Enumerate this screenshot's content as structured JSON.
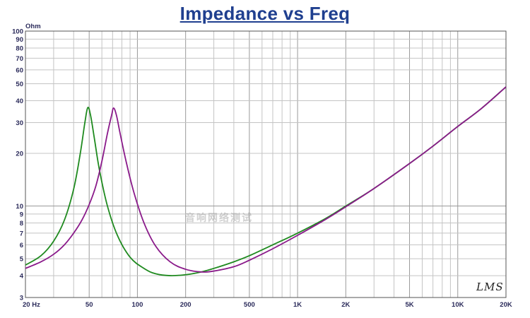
{
  "chart_data": {
    "type": "line",
    "title": "Impedance vs Freq",
    "ylabel": "Ohm",
    "xlabel": "",
    "x_scale": "log",
    "y_scale": "log",
    "xlim": [
      20,
      20000
    ],
    "ylim": [
      3,
      100
    ],
    "grid": true,
    "x_tick_labels": [
      {
        "value": 20,
        "label": "20  Hz"
      },
      {
        "value": 50,
        "label": "50"
      },
      {
        "value": 100,
        "label": "100"
      },
      {
        "value": 200,
        "label": "200"
      },
      {
        "value": 500,
        "label": "500"
      },
      {
        "value": 1000,
        "label": "1K"
      },
      {
        "value": 2000,
        "label": "2K"
      },
      {
        "value": 5000,
        "label": "5K"
      },
      {
        "value": 10000,
        "label": "10K"
      },
      {
        "value": 20000,
        "label": "20K"
      }
    ],
    "y_tick_labels": [
      {
        "value": 3,
        "label": "3"
      },
      {
        "value": 4,
        "label": "4"
      },
      {
        "value": 5,
        "label": "5"
      },
      {
        "value": 6,
        "label": "6"
      },
      {
        "value": 7,
        "label": "7"
      },
      {
        "value": 8,
        "label": "8"
      },
      {
        "value": 9,
        "label": "9"
      },
      {
        "value": 10,
        "label": "10"
      },
      {
        "value": 20,
        "label": "20"
      },
      {
        "value": 30,
        "label": "30"
      },
      {
        "value": 40,
        "label": "40"
      },
      {
        "value": 50,
        "label": "50"
      },
      {
        "value": 60,
        "label": "60"
      },
      {
        "value": 70,
        "label": "70"
      },
      {
        "value": 80,
        "label": "80"
      },
      {
        "value": 90,
        "label": "90"
      },
      {
        "value": 100,
        "label": "100"
      }
    ],
    "series": [
      {
        "color": "#1f8a1f",
        "points": [
          [
            20,
            4.6
          ],
          [
            25,
            5.2
          ],
          [
            30,
            6.3
          ],
          [
            35,
            8.3
          ],
          [
            40,
            12.5
          ],
          [
            44,
            20
          ],
          [
            47,
            30
          ],
          [
            49,
            36.5
          ],
          [
            51,
            33
          ],
          [
            54,
            24
          ],
          [
            58,
            16
          ],
          [
            65,
            10
          ],
          [
            75,
            6.8
          ],
          [
            90,
            5.1
          ],
          [
            110,
            4.4
          ],
          [
            130,
            4.1
          ],
          [
            160,
            4.0
          ],
          [
            200,
            4.05
          ],
          [
            250,
            4.2
          ],
          [
            300,
            4.4
          ],
          [
            400,
            4.8
          ],
          [
            500,
            5.2
          ],
          [
            700,
            6.0
          ],
          [
            1000,
            7.0
          ],
          [
            1500,
            8.5
          ],
          [
            2000,
            10.0
          ],
          [
            3000,
            12.6
          ],
          [
            5000,
            17.5
          ],
          [
            7000,
            22
          ],
          [
            10000,
            28.5
          ],
          [
            14000,
            36
          ],
          [
            20000,
            48
          ]
        ]
      },
      {
        "color": "#8a1a8a",
        "points": [
          [
            20,
            4.4
          ],
          [
            25,
            4.8
          ],
          [
            30,
            5.3
          ],
          [
            35,
            6.0
          ],
          [
            40,
            7.0
          ],
          [
            45,
            8.3
          ],
          [
            50,
            10.2
          ],
          [
            55,
            13
          ],
          [
            60,
            18
          ],
          [
            65,
            26
          ],
          [
            69,
            33
          ],
          [
            71,
            36.3
          ],
          [
            74,
            33
          ],
          [
            78,
            26
          ],
          [
            85,
            18
          ],
          [
            95,
            12
          ],
          [
            110,
            8
          ],
          [
            130,
            5.9
          ],
          [
            160,
            4.8
          ],
          [
            200,
            4.35
          ],
          [
            250,
            4.2
          ],
          [
            300,
            4.25
          ],
          [
            400,
            4.5
          ],
          [
            500,
            4.9
          ],
          [
            700,
            5.7
          ],
          [
            1000,
            6.8
          ],
          [
            1500,
            8.4
          ],
          [
            2000,
            9.9
          ],
          [
            3000,
            12.6
          ],
          [
            5000,
            17.5
          ],
          [
            7000,
            22
          ],
          [
            10000,
            28.5
          ],
          [
            14000,
            36
          ],
          [
            20000,
            48
          ]
        ]
      }
    ]
  },
  "watermark": "音响网络测试",
  "logo_text": "LMS"
}
